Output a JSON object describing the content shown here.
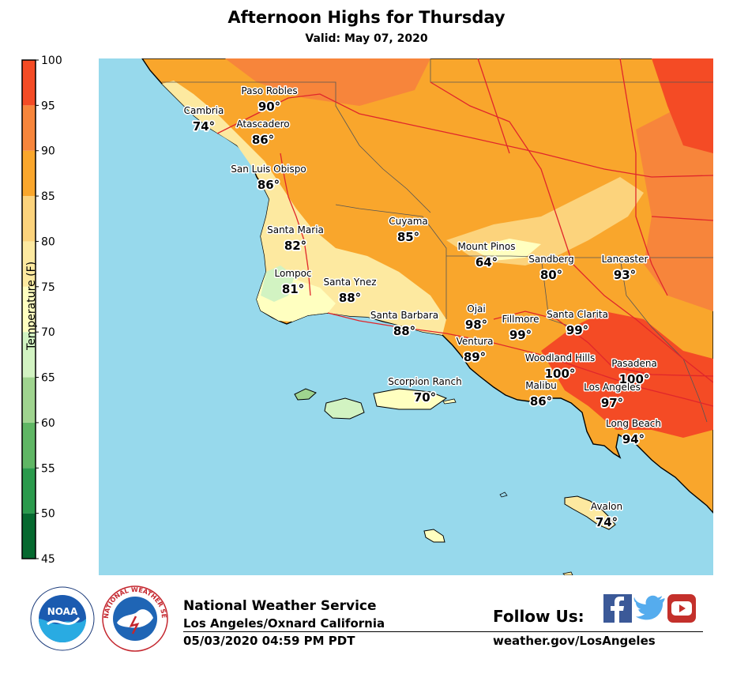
{
  "title": "Afternoon Highs for Thursday",
  "subtitle": "Valid: May 07, 2020",
  "colorbar": {
    "label": "Temperature (F)",
    "min": 45,
    "max": 100,
    "tick_labels": [
      "100",
      "95",
      "90",
      "85",
      "80",
      "75",
      "70",
      "65",
      "60",
      "55",
      "50",
      "45"
    ],
    "bands": [
      {
        "from": 45,
        "to": 50,
        "color": "#05692f"
      },
      {
        "from": 50,
        "to": 55,
        "color": "#2a9a4c"
      },
      {
        "from": 55,
        "to": 60,
        "color": "#5fb664"
      },
      {
        "from": 60,
        "to": 65,
        "color": "#9fd48f"
      },
      {
        "from": 65,
        "to": 70,
        "color": "#d2f3c2"
      },
      {
        "from": 70,
        "to": 75,
        "color": "#ffffc0"
      },
      {
        "from": 75,
        "to": 80,
        "color": "#fde9a0"
      },
      {
        "from": 80,
        "to": 85,
        "color": "#fcd37c"
      },
      {
        "from": 85,
        "to": 90,
        "color": "#f9a62c"
      },
      {
        "from": 90,
        "to": 95,
        "color": "#f7853b"
      },
      {
        "from": 95,
        "to": 100,
        "color": "#f44b25"
      }
    ]
  },
  "map_colors": {
    "ocean": "#97d9ec",
    "coast": "#000000",
    "highway": "#e0262b",
    "county_line": "#555555"
  },
  "cities": [
    {
      "name": "Paso Robles",
      "temp": "90°"
    },
    {
      "name": "Cambria",
      "temp": "74°"
    },
    {
      "name": "Atascadero",
      "temp": "86°"
    },
    {
      "name": "San Luis Obispo",
      "temp": "86°"
    },
    {
      "name": "Cuyama",
      "temp": "85°"
    },
    {
      "name": "Santa Maria",
      "temp": "82°"
    },
    {
      "name": "Mount Pinos",
      "temp": "64°"
    },
    {
      "name": "Sandberg",
      "temp": "80°"
    },
    {
      "name": "Lancaster",
      "temp": "93°"
    },
    {
      "name": "Lompoc",
      "temp": "81°"
    },
    {
      "name": "Santa Ynez",
      "temp": "88°"
    },
    {
      "name": "Ojai",
      "temp": "98°"
    },
    {
      "name": "Santa Barbara",
      "temp": "88°"
    },
    {
      "name": "Fillmore",
      "temp": "99°"
    },
    {
      "name": "Santa Clarita",
      "temp": "99°"
    },
    {
      "name": "Ventura",
      "temp": "89°"
    },
    {
      "name": "Woodland Hills",
      "temp": "100°"
    },
    {
      "name": "Pasadena",
      "temp": "100°"
    },
    {
      "name": "Scorpion Ranch",
      "temp": "70°"
    },
    {
      "name": "Malibu",
      "temp": "86°"
    },
    {
      "name": "Los Angeles",
      "temp": "97°"
    },
    {
      "name": "Long Beach",
      "temp": "94°"
    },
    {
      "name": "Avalon",
      "temp": "74°"
    }
  ],
  "footer": {
    "org_name": "National Weather Service",
    "office": "Los Angeles/Oxnard California",
    "issued": "05/03/2020 04:59 PM PDT",
    "follow_label": "Follow Us:",
    "website": "weather.gov/LosAngeles",
    "social_icons": [
      "facebook-icon",
      "twitter-icon",
      "youtube-icon"
    ],
    "social_colors": {
      "facebook": "#3b5998",
      "twitter": "#55acee",
      "youtube": "#c4302b"
    }
  },
  "logos": {
    "noaa_text": "NOAA",
    "nws_ring_text": "NATIONAL WEATHER SERVICE"
  }
}
